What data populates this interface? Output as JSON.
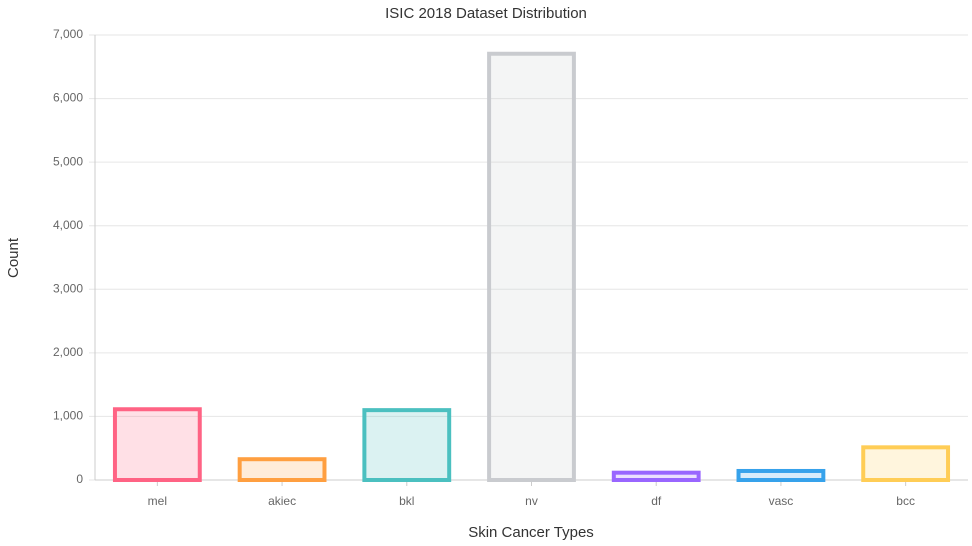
{
  "chart_data": {
    "type": "bar",
    "title": "ISIC 2018 Dataset Distribution",
    "x_label": "Skin Cancer Types",
    "y_label": "Count",
    "categories": [
      "mel",
      "akiec",
      "bkl",
      "nv",
      "df",
      "vasc",
      "bcc"
    ],
    "values": [
      1113,
      327,
      1099,
      6705,
      115,
      142,
      514
    ],
    "colors": [
      "#ff6384",
      "#ff9f40",
      "#4bc0c0",
      "#c9cbcf",
      "#9966ff",
      "#36a2eb",
      "#ffcd56"
    ],
    "ylim": [
      0,
      7000
    ],
    "yticks": [
      0,
      {
        "value": 1000,
        "label": "1,000"
      },
      {
        "value": 2000,
        "label": "2,000"
      },
      {
        "value": 3000,
        "label": "3,000"
      },
      {
        "value": 4000,
        "label": "4,000"
      },
      {
        "value": 5000,
        "label": "5,000"
      },
      {
        "value": 6000,
        "label": "6,000"
      },
      {
        "value": 7000,
        "label": "7,000"
      }
    ],
    "grid": true
  }
}
